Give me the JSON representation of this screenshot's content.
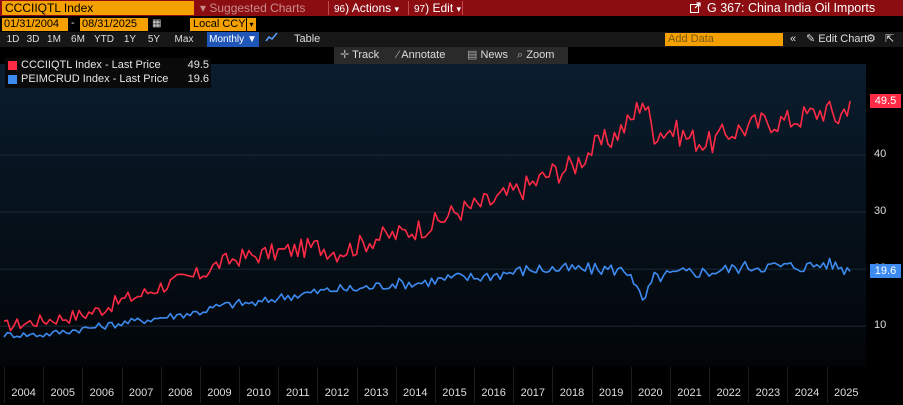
{
  "header": {
    "ticker": "CCCIIQTL Index",
    "suggested_charts": "Suggested Charts",
    "actions": "Actions",
    "edit": "Edit",
    "title": "G 367: China India Oil Imports",
    "actions_prefix": "96",
    "edit_prefix": "97"
  },
  "range": {
    "start": "01/31/2004",
    "end": "08/31/2025",
    "currency": "Local CCY"
  },
  "periods": [
    "1D",
    "3D",
    "1M",
    "6M",
    "YTD",
    "1Y",
    "5Y",
    "Max"
  ],
  "frequency": "Monthly",
  "table_label": "Table",
  "add_data_placeholder": "Add Data",
  "edit_chart": "Edit Chart",
  "toolbar": {
    "track": "Track",
    "annotate": "Annotate",
    "news": "News",
    "zoom": "Zoom"
  },
  "colors": {
    "red_series": "#ff2a45",
    "blue_series": "#3d8bf0",
    "header_bg": "#8b0d12",
    "accent": "#f4a000"
  },
  "chart_data": {
    "type": "line",
    "title": "G 367: China India Oil Imports",
    "x_range": [
      2004.0,
      2025.75
    ],
    "ylim": [
      3,
      56
    ],
    "y_ticks": [
      10,
      20,
      30,
      40
    ],
    "x_ticks": [
      "2004",
      "2005",
      "2006",
      "2007",
      "2008",
      "2009",
      "2010",
      "2011",
      "2012",
      "2013",
      "2014",
      "2015",
      "2016",
      "2017",
      "2018",
      "2019",
      "2020",
      "2021",
      "2022",
      "2023",
      "2024",
      "2025"
    ],
    "series": [
      {
        "name": "CCCIIQTL Index - Last Price",
        "short": "CCCIIQTL Index - Last Price",
        "last": "49.5",
        "color": "#ff2a45",
        "x": [
          2004.0,
          2004.5,
          2005.0,
          2005.5,
          2006.0,
          2006.5,
          2007.0,
          2007.5,
          2008.0,
          2008.5,
          2009.0,
          2009.5,
          2010.0,
          2010.5,
          2011.0,
          2011.5,
          2012.0,
          2012.5,
          2013.0,
          2013.5,
          2014.0,
          2014.5,
          2015.0,
          2015.5,
          2016.0,
          2016.5,
          2017.0,
          2017.5,
          2018.0,
          2018.5,
          2019.0,
          2019.5,
          2020.0,
          2020.3,
          2020.6,
          2021.0,
          2021.5,
          2022.0,
          2022.5,
          2023.0,
          2023.5,
          2024.0,
          2024.5,
          2025.0,
          2025.3,
          2025.6
        ],
        "values": [
          10,
          10.5,
          11,
          11.5,
          12,
          13,
          14.5,
          15.5,
          17,
          18,
          19,
          21,
          22,
          22.5,
          23,
          23.5,
          24,
          23,
          24,
          25.5,
          26,
          27,
          28,
          30,
          31,
          32,
          33.5,
          35,
          37,
          38,
          41,
          43,
          46,
          50,
          44,
          44.5,
          43,
          42,
          44,
          45,
          46,
          46,
          47,
          48,
          46.5,
          49.5
        ]
      },
      {
        "name": "PEIMCRUD Index - Last Price",
        "short": "PEIMCRUD Index - Last Price",
        "last": "19.6",
        "color": "#3d8bf0",
        "x": [
          2004.0,
          2004.5,
          2005.0,
          2005.5,
          2006.0,
          2006.5,
          2007.0,
          2007.5,
          2008.0,
          2008.5,
          2009.0,
          2009.5,
          2010.0,
          2010.5,
          2011.0,
          2011.5,
          2012.0,
          2012.5,
          2013.0,
          2013.5,
          2014.0,
          2014.5,
          2015.0,
          2015.5,
          2016.0,
          2016.5,
          2017.0,
          2017.5,
          2018.0,
          2018.5,
          2019.0,
          2019.5,
          2020.0,
          2020.3,
          2020.6,
          2021.0,
          2021.5,
          2022.0,
          2022.5,
          2023.0,
          2023.5,
          2024.0,
          2024.5,
          2025.0,
          2025.3,
          2025.6
        ],
        "values": [
          8.5,
          8.5,
          8.5,
          9,
          9.5,
          10,
          10.5,
          11,
          11.5,
          12,
          12.5,
          13.5,
          14,
          14,
          15,
          15.5,
          16,
          16.5,
          16.5,
          17,
          17.5,
          17.5,
          18,
          18.5,
          18.5,
          19,
          19.5,
          20,
          20,
          20,
          20,
          20,
          19.5,
          14,
          18.5,
          19,
          19.5,
          19.5,
          20,
          20.5,
          20.5,
          20.5,
          20.5,
          21,
          20.5,
          19.6
        ]
      }
    ]
  }
}
